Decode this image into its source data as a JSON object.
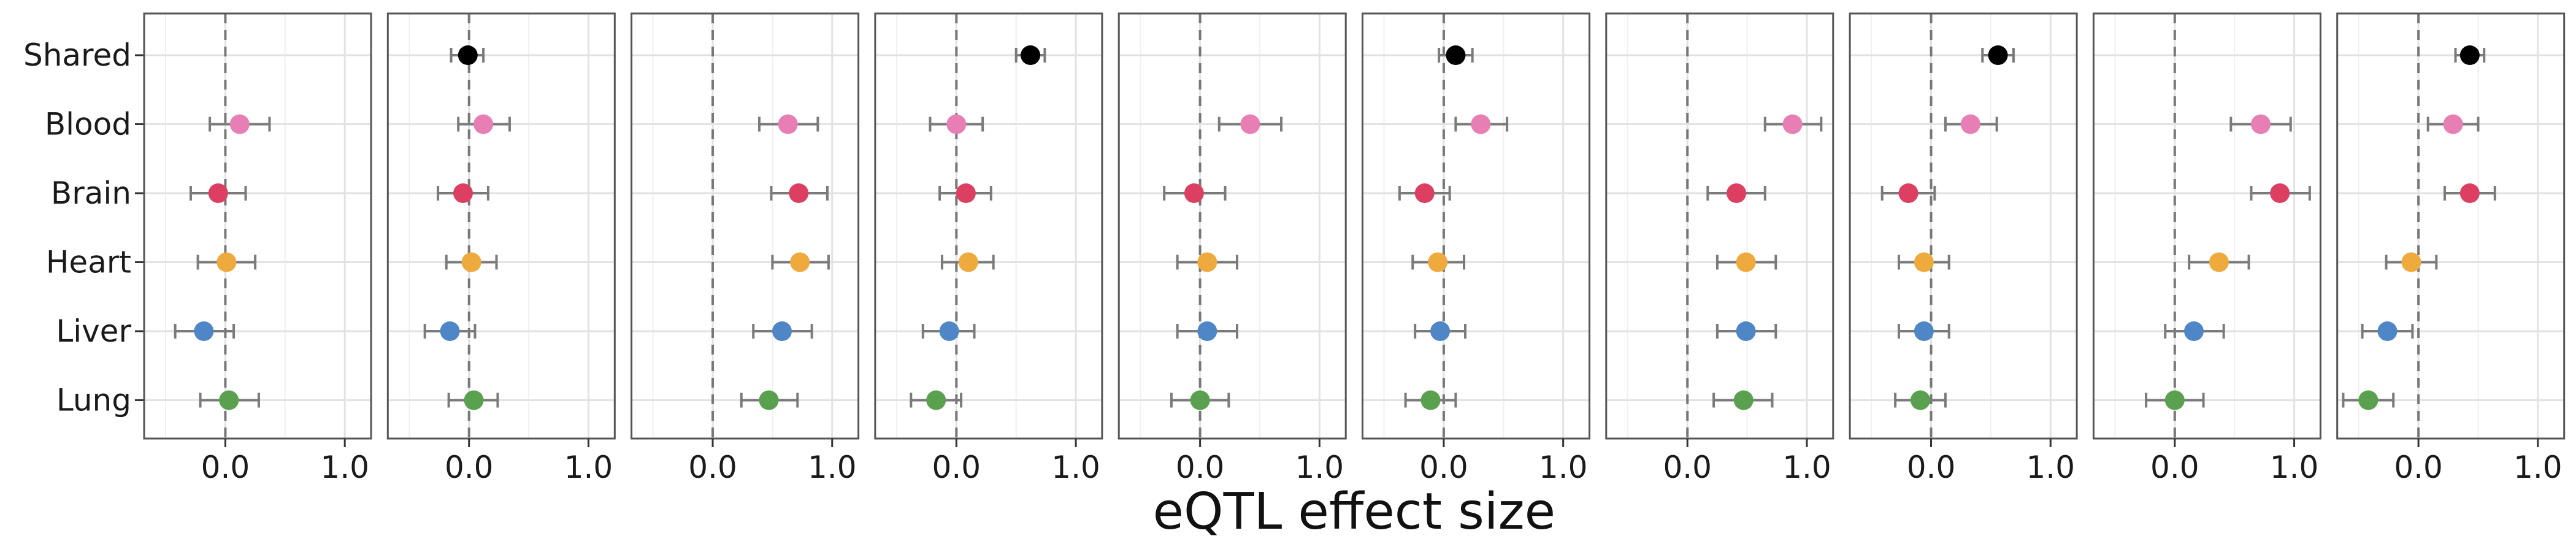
{
  "chart_data": {
    "type": "scatter",
    "subtype": "forest-plot-small-multiples",
    "xlabel": "eQTL effect size",
    "categories": [
      "Shared",
      "Blood",
      "Brain",
      "Heart",
      "Liver",
      "Lung"
    ],
    "x_ticks": [
      0.0,
      1.0
    ],
    "x_tick_labels": [
      "0.0",
      "1.0"
    ],
    "xlim": [
      -0.68,
      1.22
    ],
    "reference_line_x": 0,
    "grid": true,
    "legend": "none",
    "colors": {
      "Shared": "#000000",
      "Blood": "#E77FB5",
      "Brain": "#DD3F62",
      "Heart": "#EEAA3C",
      "Liver": "#4F86C6",
      "Lung": "#5AA14F"
    },
    "error_bar_color": "#7a7a7a",
    "panels": [
      {
        "points": [
          {
            "category": "Blood",
            "value": 0.12,
            "low": -0.13,
            "high": 0.37
          },
          {
            "category": "Brain",
            "value": -0.06,
            "low": -0.29,
            "high": 0.17
          },
          {
            "category": "Heart",
            "value": 0.01,
            "low": -0.23,
            "high": 0.25
          },
          {
            "category": "Liver",
            "value": -0.18,
            "low": -0.42,
            "high": 0.07
          },
          {
            "category": "Lung",
            "value": 0.03,
            "low": -0.21,
            "high": 0.28
          }
        ]
      },
      {
        "points": [
          {
            "category": "Shared",
            "value": -0.01,
            "low": -0.15,
            "high": 0.12
          },
          {
            "category": "Blood",
            "value": 0.12,
            "low": -0.09,
            "high": 0.34
          },
          {
            "category": "Brain",
            "value": -0.05,
            "low": -0.26,
            "high": 0.16
          },
          {
            "category": "Heart",
            "value": 0.02,
            "low": -0.19,
            "high": 0.23
          },
          {
            "category": "Liver",
            "value": -0.16,
            "low": -0.37,
            "high": 0.05
          },
          {
            "category": "Lung",
            "value": 0.04,
            "low": -0.17,
            "high": 0.24
          }
        ]
      },
      {
        "points": [
          {
            "category": "Blood",
            "value": 0.63,
            "low": 0.39,
            "high": 0.88
          },
          {
            "category": "Brain",
            "value": 0.72,
            "low": 0.49,
            "high": 0.96
          },
          {
            "category": "Heart",
            "value": 0.73,
            "low": 0.5,
            "high": 0.97
          },
          {
            "category": "Liver",
            "value": 0.58,
            "low": 0.34,
            "high": 0.83
          },
          {
            "category": "Lung",
            "value": 0.47,
            "low": 0.24,
            "high": 0.71
          }
        ]
      },
      {
        "points": [
          {
            "category": "Shared",
            "value": 0.62,
            "low": 0.5,
            "high": 0.74
          },
          {
            "category": "Blood",
            "value": 0.0,
            "low": -0.22,
            "high": 0.22
          },
          {
            "category": "Brain",
            "value": 0.08,
            "low": -0.14,
            "high": 0.29
          },
          {
            "category": "Heart",
            "value": 0.1,
            "low": -0.12,
            "high": 0.31
          },
          {
            "category": "Liver",
            "value": -0.06,
            "low": -0.28,
            "high": 0.15
          },
          {
            "category": "Lung",
            "value": -0.17,
            "low": -0.38,
            "high": 0.04
          }
        ]
      },
      {
        "points": [
          {
            "category": "Blood",
            "value": 0.42,
            "low": 0.16,
            "high": 0.68
          },
          {
            "category": "Brain",
            "value": -0.05,
            "low": -0.3,
            "high": 0.21
          },
          {
            "category": "Heart",
            "value": 0.06,
            "low": -0.19,
            "high": 0.31
          },
          {
            "category": "Liver",
            "value": 0.06,
            "low": -0.19,
            "high": 0.31
          },
          {
            "category": "Lung",
            "value": 0.0,
            "low": -0.24,
            "high": 0.24
          }
        ]
      },
      {
        "points": [
          {
            "category": "Shared",
            "value": 0.1,
            "low": -0.04,
            "high": 0.24
          },
          {
            "category": "Blood",
            "value": 0.31,
            "low": 0.1,
            "high": 0.53
          },
          {
            "category": "Brain",
            "value": -0.16,
            "low": -0.37,
            "high": 0.05
          },
          {
            "category": "Heart",
            "value": -0.05,
            "low": -0.26,
            "high": 0.17
          },
          {
            "category": "Liver",
            "value": -0.03,
            "low": -0.24,
            "high": 0.18
          },
          {
            "category": "Lung",
            "value": -0.11,
            "low": -0.32,
            "high": 0.1
          }
        ]
      },
      {
        "points": [
          {
            "category": "Blood",
            "value": 0.88,
            "low": 0.65,
            "high": 1.12
          },
          {
            "category": "Brain",
            "value": 0.41,
            "low": 0.17,
            "high": 0.65
          },
          {
            "category": "Heart",
            "value": 0.49,
            "low": 0.25,
            "high": 0.74
          },
          {
            "category": "Liver",
            "value": 0.49,
            "low": 0.25,
            "high": 0.74
          },
          {
            "category": "Lung",
            "value": 0.47,
            "low": 0.22,
            "high": 0.71
          }
        ]
      },
      {
        "points": [
          {
            "category": "Shared",
            "value": 0.56,
            "low": 0.43,
            "high": 0.69
          },
          {
            "category": "Blood",
            "value": 0.33,
            "low": 0.12,
            "high": 0.55
          },
          {
            "category": "Brain",
            "value": -0.19,
            "low": -0.41,
            "high": 0.03
          },
          {
            "category": "Heart",
            "value": -0.06,
            "low": -0.27,
            "high": 0.15
          },
          {
            "category": "Liver",
            "value": -0.06,
            "low": -0.27,
            "high": 0.15
          },
          {
            "category": "Lung",
            "value": -0.09,
            "low": -0.3,
            "high": 0.12
          }
        ]
      },
      {
        "points": [
          {
            "category": "Blood",
            "value": 0.72,
            "low": 0.47,
            "high": 0.97
          },
          {
            "category": "Brain",
            "value": 0.88,
            "low": 0.64,
            "high": 1.13
          },
          {
            "category": "Heart",
            "value": 0.37,
            "low": 0.12,
            "high": 0.62
          },
          {
            "category": "Liver",
            "value": 0.16,
            "low": -0.08,
            "high": 0.41
          },
          {
            "category": "Lung",
            "value": 0.0,
            "low": -0.24,
            "high": 0.24
          }
        ]
      },
      {
        "points": [
          {
            "category": "Shared",
            "value": 0.43,
            "low": 0.31,
            "high": 0.55
          },
          {
            "category": "Blood",
            "value": 0.29,
            "low": 0.08,
            "high": 0.5
          },
          {
            "category": "Brain",
            "value": 0.43,
            "low": 0.22,
            "high": 0.64
          },
          {
            "category": "Heart",
            "value": -0.06,
            "low": -0.27,
            "high": 0.15
          },
          {
            "category": "Liver",
            "value": -0.26,
            "low": -0.47,
            "high": -0.05
          },
          {
            "category": "Lung",
            "value": -0.42,
            "low": -0.63,
            "high": -0.21
          }
        ]
      }
    ]
  }
}
